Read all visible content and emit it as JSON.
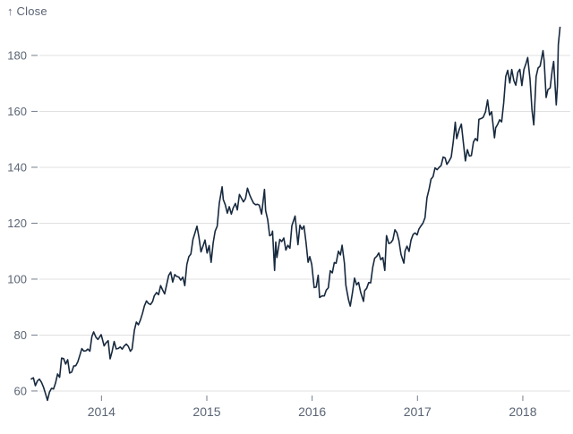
{
  "page": {
    "background": "#ffffff"
  },
  "chart_data": {
    "type": "line",
    "title": "",
    "axis_label": "↑ Close",
    "series_name": "Close",
    "xlabel": "",
    "ylabel": "Close",
    "x_ticks": [
      2014,
      2015,
      2016,
      2017,
      2018
    ],
    "y_ticks": [
      60,
      80,
      100,
      120,
      140,
      160,
      180
    ],
    "xlim": [
      2013.3,
      2018.4
    ],
    "ylim": [
      55.5,
      191.5
    ],
    "grid": "horizontal",
    "legend": "none",
    "line_color": "#17293e",
    "grid_color": "#e0e0e0",
    "tick_color": "#737e8c",
    "label_color": "#5a6474",
    "points": [
      [
        "2013-05-03",
        64.29
      ],
      [
        "2013-05-10",
        64.71
      ],
      [
        "2013-05-17",
        61.89
      ],
      [
        "2013-05-24",
        63.59
      ],
      [
        "2013-05-31",
        64.25
      ],
      [
        "2013-06-07",
        63.12
      ],
      [
        "2013-06-14",
        61.44
      ],
      [
        "2013-06-21",
        59.07
      ],
      [
        "2013-06-28",
        56.65
      ],
      [
        "2013-07-05",
        59.63
      ],
      [
        "2013-07-12",
        60.93
      ],
      [
        "2013-07-19",
        60.71
      ],
      [
        "2013-07-26",
        62.95
      ],
      [
        "2013-08-02",
        66.08
      ],
      [
        "2013-08-09",
        64.92
      ],
      [
        "2013-08-16",
        71.77
      ],
      [
        "2013-08-23",
        71.57
      ],
      [
        "2013-08-30",
        69.6
      ],
      [
        "2013-09-06",
        71.17
      ],
      [
        "2013-09-13",
        66.41
      ],
      [
        "2013-09-20",
        66.77
      ],
      [
        "2013-09-27",
        68.96
      ],
      [
        "2013-10-04",
        69.0
      ],
      [
        "2013-10-11",
        70.4
      ],
      [
        "2013-10-18",
        72.7
      ],
      [
        "2013-10-25",
        75.14
      ],
      [
        "2013-11-01",
        74.29
      ],
      [
        "2013-11-08",
        74.37
      ],
      [
        "2013-11-15",
        74.99
      ],
      [
        "2013-11-22",
        74.26
      ],
      [
        "2013-11-29",
        79.44
      ],
      [
        "2013-12-05",
        81.12
      ],
      [
        "2013-12-13",
        79.2
      ],
      [
        "2013-12-20",
        78.43
      ],
      [
        "2013-12-31",
        80.15
      ],
      [
        "2014-01-10",
        76.13
      ],
      [
        "2014-01-17",
        77.24
      ],
      [
        "2014-01-24",
        78.01
      ],
      [
        "2014-01-31",
        71.51
      ],
      [
        "2014-02-07",
        74.24
      ],
      [
        "2014-02-14",
        77.71
      ],
      [
        "2014-02-21",
        75.04
      ],
      [
        "2014-02-28",
        75.18
      ],
      [
        "2014-03-07",
        75.77
      ],
      [
        "2014-03-14",
        74.96
      ],
      [
        "2014-03-21",
        76.12
      ],
      [
        "2014-03-28",
        76.78
      ],
      [
        "2014-04-04",
        75.97
      ],
      [
        "2014-04-11",
        74.23
      ],
      [
        "2014-04-17",
        74.99
      ],
      [
        "2014-04-25",
        81.71
      ],
      [
        "2014-05-02",
        84.65
      ],
      [
        "2014-05-09",
        83.65
      ],
      [
        "2014-05-16",
        85.36
      ],
      [
        "2014-05-23",
        87.73
      ],
      [
        "2014-05-30",
        90.43
      ],
      [
        "2014-06-06",
        92.22
      ],
      [
        "2014-06-13",
        91.28
      ],
      [
        "2014-06-20",
        90.91
      ],
      [
        "2014-06-27",
        91.98
      ],
      [
        "2014-07-03",
        94.03
      ],
      [
        "2014-07-11",
        95.22
      ],
      [
        "2014-07-18",
        94.43
      ],
      [
        "2014-07-25",
        97.67
      ],
      [
        "2014-08-01",
        96.13
      ],
      [
        "2014-08-08",
        94.74
      ],
      [
        "2014-08-15",
        97.98
      ],
      [
        "2014-08-22",
        101.32
      ],
      [
        "2014-08-29",
        102.5
      ],
      [
        "2014-09-05",
        98.97
      ],
      [
        "2014-09-12",
        101.66
      ],
      [
        "2014-09-19",
        100.96
      ],
      [
        "2014-09-26",
        100.75
      ],
      [
        "2014-10-03",
        99.62
      ],
      [
        "2014-10-10",
        100.73
      ],
      [
        "2014-10-17",
        97.67
      ],
      [
        "2014-10-24",
        105.22
      ],
      [
        "2014-10-31",
        108.0
      ],
      [
        "2014-11-07",
        109.01
      ],
      [
        "2014-11-14",
        114.18
      ],
      [
        "2014-11-21",
        116.47
      ],
      [
        "2014-11-28",
        118.93
      ],
      [
        "2014-12-05",
        115.0
      ],
      [
        "2014-12-12",
        109.73
      ],
      [
        "2014-12-19",
        111.78
      ],
      [
        "2014-12-26",
        113.99
      ],
      [
        "2015-01-02",
        109.33
      ],
      [
        "2015-01-09",
        112.01
      ],
      [
        "2015-01-16",
        105.99
      ],
      [
        "2015-01-23",
        112.98
      ],
      [
        "2015-01-30",
        117.16
      ],
      [
        "2015-02-06",
        118.93
      ],
      [
        "2015-02-13",
        127.08
      ],
      [
        "2015-02-23",
        133.0
      ],
      [
        "2015-02-27",
        128.46
      ],
      [
        "2015-03-06",
        126.6
      ],
      [
        "2015-03-13",
        123.59
      ],
      [
        "2015-03-20",
        125.9
      ],
      [
        "2015-03-27",
        123.25
      ],
      [
        "2015-04-02",
        125.32
      ],
      [
        "2015-04-10",
        127.1
      ],
      [
        "2015-04-17",
        124.75
      ],
      [
        "2015-04-24",
        130.28
      ],
      [
        "2015-05-01",
        128.95
      ],
      [
        "2015-05-08",
        127.62
      ],
      [
        "2015-05-15",
        128.77
      ],
      [
        "2015-05-22",
        132.54
      ],
      [
        "2015-05-29",
        130.28
      ],
      [
        "2015-06-05",
        128.65
      ],
      [
        "2015-06-12",
        127.17
      ],
      [
        "2015-06-19",
        126.6
      ],
      [
        "2015-06-26",
        126.75
      ],
      [
        "2015-07-02",
        126.44
      ],
      [
        "2015-07-10",
        123.28
      ],
      [
        "2015-07-17",
        129.62
      ],
      [
        "2015-07-20",
        132.07
      ],
      [
        "2015-07-24",
        124.5
      ],
      [
        "2015-07-31",
        121.3
      ],
      [
        "2015-08-07",
        115.52
      ],
      [
        "2015-08-14",
        115.96
      ],
      [
        "2015-08-17",
        117.16
      ],
      [
        "2015-08-24",
        103.12
      ],
      [
        "2015-08-28",
        113.29
      ],
      [
        "2015-09-01",
        107.72
      ],
      [
        "2015-09-11",
        114.21
      ],
      [
        "2015-09-18",
        113.45
      ],
      [
        "2015-09-25",
        114.71
      ],
      [
        "2015-10-02",
        110.38
      ],
      [
        "2015-10-09",
        112.12
      ],
      [
        "2015-10-16",
        111.04
      ],
      [
        "2015-10-23",
        119.08
      ],
      [
        "2015-11-03",
        122.57
      ],
      [
        "2015-11-13",
        112.34
      ],
      [
        "2015-11-20",
        119.3
      ],
      [
        "2015-11-27",
        117.81
      ],
      [
        "2015-12-04",
        119.03
      ],
      [
        "2015-12-11",
        113.18
      ],
      [
        "2015-12-18",
        106.03
      ],
      [
        "2015-12-24",
        108.03
      ],
      [
        "2015-12-31",
        105.26
      ],
      [
        "2016-01-08",
        96.96
      ],
      [
        "2016-01-15",
        97.13
      ],
      [
        "2016-01-22",
        101.42
      ],
      [
        "2016-01-27",
        93.42
      ],
      [
        "2016-02-05",
        94.02
      ],
      [
        "2016-02-12",
        93.99
      ],
      [
        "2016-02-19",
        96.04
      ],
      [
        "2016-02-26",
        96.91
      ],
      [
        "2016-03-04",
        103.01
      ],
      [
        "2016-03-11",
        102.26
      ],
      [
        "2016-03-18",
        105.92
      ],
      [
        "2016-03-24",
        105.67
      ],
      [
        "2016-04-01",
        109.99
      ],
      [
        "2016-04-08",
        108.66
      ],
      [
        "2016-04-14",
        112.1
      ],
      [
        "2016-04-22",
        105.68
      ],
      [
        "2016-04-27",
        97.82
      ],
      [
        "2016-05-06",
        92.72
      ],
      [
        "2016-05-12",
        90.34
      ],
      [
        "2016-05-20",
        95.22
      ],
      [
        "2016-05-27",
        100.35
      ],
      [
        "2016-06-03",
        97.92
      ],
      [
        "2016-06-10",
        98.83
      ],
      [
        "2016-06-17",
        95.33
      ],
      [
        "2016-06-27",
        92.04
      ],
      [
        "2016-07-01",
        95.89
      ],
      [
        "2016-07-08",
        96.68
      ],
      [
        "2016-07-15",
        98.78
      ],
      [
        "2016-07-22",
        98.66
      ],
      [
        "2016-07-29",
        104.21
      ],
      [
        "2016-08-05",
        107.48
      ],
      [
        "2016-08-12",
        108.18
      ],
      [
        "2016-08-19",
        109.36
      ],
      [
        "2016-08-26",
        106.94
      ],
      [
        "2016-09-02",
        107.73
      ],
      [
        "2016-09-09",
        103.13
      ],
      [
        "2016-09-15",
        115.57
      ],
      [
        "2016-09-23",
        112.71
      ],
      [
        "2016-09-30",
        113.05
      ],
      [
        "2016-10-07",
        114.06
      ],
      [
        "2016-10-14",
        117.63
      ],
      [
        "2016-10-21",
        116.6
      ],
      [
        "2016-10-28",
        113.72
      ],
      [
        "2016-11-04",
        108.84
      ],
      [
        "2016-11-14",
        105.71
      ],
      [
        "2016-11-18",
        110.06
      ],
      [
        "2016-11-25",
        111.79
      ],
      [
        "2016-12-02",
        109.9
      ],
      [
        "2016-12-09",
        113.95
      ],
      [
        "2016-12-16",
        115.97
      ],
      [
        "2016-12-23",
        116.52
      ],
      [
        "2016-12-30",
        115.82
      ],
      [
        "2017-01-06",
        117.91
      ],
      [
        "2017-01-13",
        119.04
      ],
      [
        "2017-01-20",
        120.0
      ],
      [
        "2017-01-27",
        121.95
      ],
      [
        "2017-02-03",
        129.08
      ],
      [
        "2017-02-10",
        132.12
      ],
      [
        "2017-02-17",
        135.72
      ],
      [
        "2017-02-24",
        136.66
      ],
      [
        "2017-03-03",
        139.78
      ],
      [
        "2017-03-10",
        139.14
      ],
      [
        "2017-03-17",
        139.99
      ],
      [
        "2017-03-24",
        140.64
      ],
      [
        "2017-03-31",
        143.66
      ],
      [
        "2017-04-07",
        143.34
      ],
      [
        "2017-04-13",
        141.05
      ],
      [
        "2017-04-21",
        142.27
      ],
      [
        "2017-04-28",
        143.65
      ],
      [
        "2017-05-05",
        148.96
      ],
      [
        "2017-05-12",
        156.1
      ],
      [
        "2017-05-17",
        150.25
      ],
      [
        "2017-05-26",
        153.61
      ],
      [
        "2017-06-02",
        155.45
      ],
      [
        "2017-06-09",
        148.98
      ],
      [
        "2017-06-16",
        142.27
      ],
      [
        "2017-06-23",
        146.28
      ],
      [
        "2017-06-30",
        144.02
      ],
      [
        "2017-07-07",
        144.18
      ],
      [
        "2017-07-14",
        149.04
      ],
      [
        "2017-07-21",
        150.27
      ],
      [
        "2017-07-28",
        149.5
      ],
      [
        "2017-08-02",
        157.14
      ],
      [
        "2017-08-11",
        157.48
      ],
      [
        "2017-08-17",
        157.86
      ],
      [
        "2017-08-25",
        159.86
      ],
      [
        "2017-09-01",
        164.05
      ],
      [
        "2017-09-08",
        158.63
      ],
      [
        "2017-09-15",
        159.88
      ],
      [
        "2017-09-25",
        150.55
      ],
      [
        "2017-09-29",
        154.12
      ],
      [
        "2017-10-06",
        155.3
      ],
      [
        "2017-10-13",
        156.99
      ],
      [
        "2017-10-20",
        156.25
      ],
      [
        "2017-10-27",
        163.05
      ],
      [
        "2017-11-03",
        172.5
      ],
      [
        "2017-11-10",
        174.67
      ],
      [
        "2017-11-17",
        170.15
      ],
      [
        "2017-11-24",
        174.97
      ],
      [
        "2017-12-01",
        171.05
      ],
      [
        "2017-12-08",
        169.37
      ],
      [
        "2017-12-15",
        173.97
      ],
      [
        "2017-12-22",
        175.01
      ],
      [
        "2017-12-29",
        169.23
      ],
      [
        "2018-01-05",
        175.0
      ],
      [
        "2018-01-12",
        177.09
      ],
      [
        "2018-01-18",
        179.26
      ],
      [
        "2018-01-26",
        171.51
      ],
      [
        "2018-02-02",
        160.5
      ],
      [
        "2018-02-08",
        155.15
      ],
      [
        "2018-02-16",
        172.43
      ],
      [
        "2018-02-23",
        175.5
      ],
      [
        "2018-03-02",
        176.21
      ],
      [
        "2018-03-12",
        181.72
      ],
      [
        "2018-03-16",
        178.02
      ],
      [
        "2018-03-23",
        164.94
      ],
      [
        "2018-03-29",
        167.78
      ],
      [
        "2018-04-06",
        168.38
      ],
      [
        "2018-04-13",
        174.73
      ],
      [
        "2018-04-18",
        177.84
      ],
      [
        "2018-04-27",
        162.32
      ],
      [
        "2018-05-01",
        169.1
      ],
      [
        "2018-05-04",
        183.83
      ],
      [
        "2018-05-10",
        190.04
      ]
    ]
  }
}
